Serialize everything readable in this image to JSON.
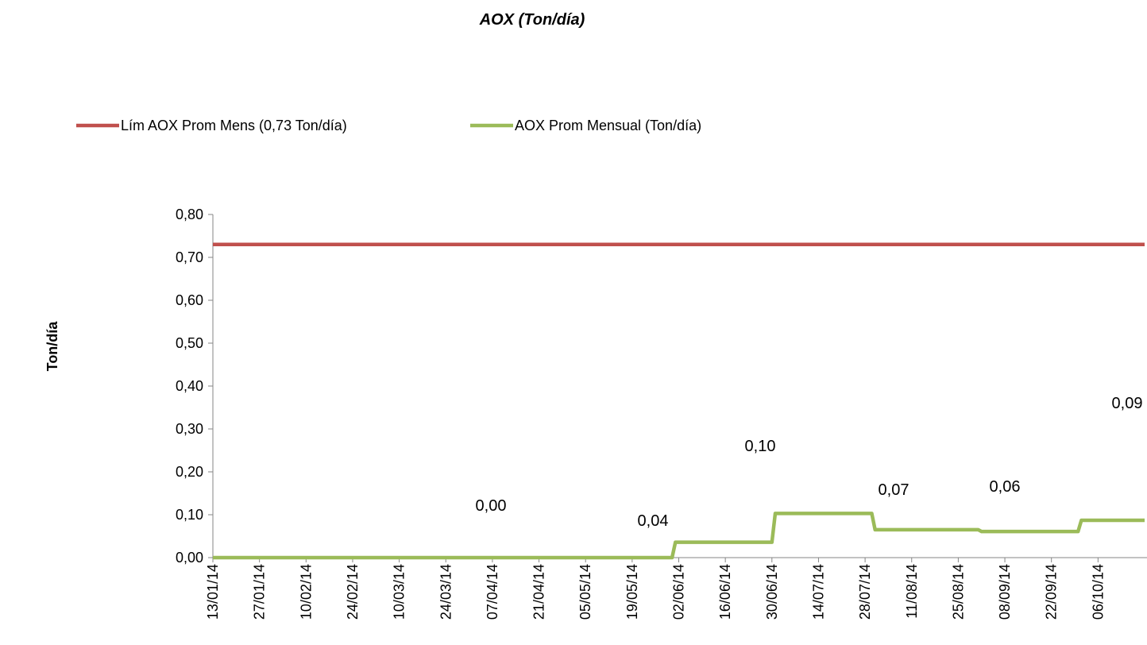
{
  "chart_data": {
    "type": "line",
    "title": "AOX (Ton/día)",
    "xlabel": "",
    "ylabel": "Ton/día",
    "ylim": [
      0,
      0.8
    ],
    "yticks": [
      "0,00",
      "0,10",
      "0,20",
      "0,30",
      "0,40",
      "0,50",
      "0,60",
      "0,70",
      "0,80"
    ],
    "categories": [
      "13/01/14",
      "27/01/14",
      "10/02/14",
      "24/02/14",
      "10/03/14",
      "24/03/14",
      "07/04/14",
      "21/04/14",
      "05/05/14",
      "19/05/14",
      "02/06/14",
      "16/06/14",
      "30/06/14",
      "14/07/14",
      "28/07/14",
      "11/08/14",
      "25/08/14",
      "08/09/14",
      "22/09/14",
      "06/10/14"
    ],
    "legend_position": "top-left",
    "grid": false,
    "series": [
      {
        "name": "Lím AOX Prom Mens (0,73 Ton/día)",
        "color": "#C0504D",
        "x": [
          "13/01/14",
          "20/10/14"
        ],
        "values": [
          0.73,
          0.73
        ]
      },
      {
        "name": "AOX Prom Mensual (Ton/día)",
        "color": "#9BBB59",
        "x": [
          "13/01/14",
          "31/05/14",
          "01/06/14",
          "30/06/14",
          "01/07/14",
          "30/07/14",
          "31/07/14",
          "31/08/14",
          "01/09/14",
          "30/09/14",
          "01/10/14",
          "20/10/14"
        ],
        "values": [
          0.0,
          0.0,
          0.036,
          0.036,
          0.103,
          0.103,
          0.065,
          0.065,
          0.061,
          0.061,
          0.087,
          0.087
        ]
      }
    ],
    "data_labels": [
      "0,00",
      "0,04",
      "0,10",
      "0,07",
      "0,06",
      "0,09"
    ]
  }
}
